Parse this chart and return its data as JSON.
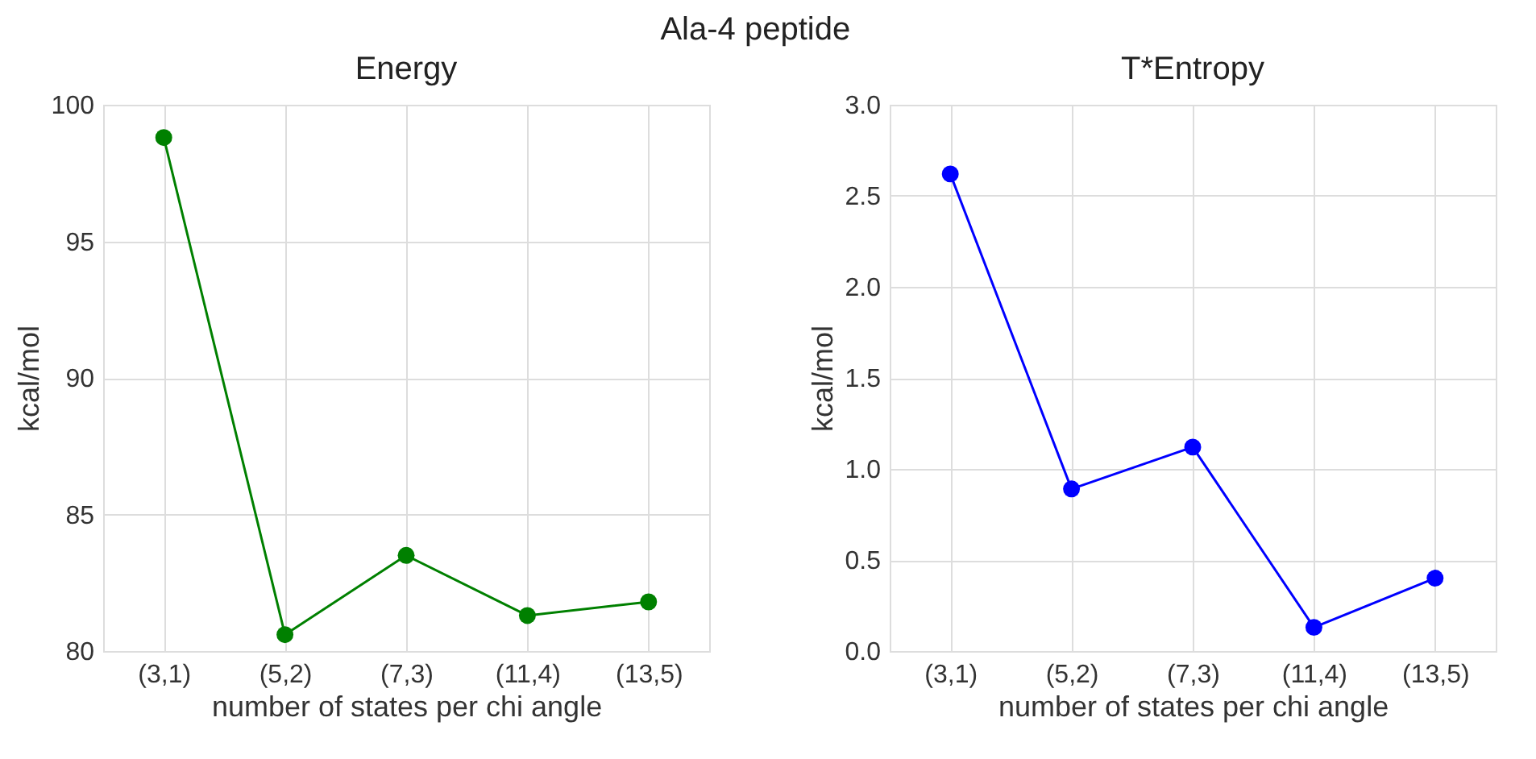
{
  "chart_data": [
    {
      "type": "line",
      "title": "Energy",
      "xlabel": "number of states per chi angle",
      "ylabel": "kcal/mol",
      "annotations": [
        "Ala-4 peptide"
      ],
      "categories": [
        "(3,1)",
        "(5,2)",
        "(7,3)",
        "(11,4)",
        "(13,5)"
      ],
      "series": [
        {
          "color": "#008000",
          "values": [
            98.8,
            80.6,
            83.5,
            81.3,
            81.8
          ]
        }
      ],
      "ylim": [
        80,
        100
      ],
      "yticks": [
        80,
        85,
        90,
        95,
        100
      ],
      "grid": true,
      "marker": "circle",
      "line_style": "solid"
    },
    {
      "type": "line",
      "title": "T*Entropy",
      "xlabel": "number of states per chi angle",
      "ylabel": "kcal/mol",
      "categories": [
        "(3,1)",
        "(5,2)",
        "(7,3)",
        "(11,4)",
        "(13,5)"
      ],
      "series": [
        {
          "color": "#0000ff",
          "values": [
            2.62,
            0.89,
            1.12,
            0.13,
            0.4
          ]
        }
      ],
      "ylim": [
        0,
        3
      ],
      "yticks": [
        {
          "value": 0,
          "label": "0.0"
        },
        0.5,
        {
          "value": 1,
          "label": "1.0"
        },
        1.5,
        {
          "value": 2,
          "label": "2.0"
        },
        2.5,
        {
          "value": 3,
          "label": "3.0"
        }
      ],
      "grid": true,
      "marker": "circle",
      "line_style": "solid"
    }
  ]
}
